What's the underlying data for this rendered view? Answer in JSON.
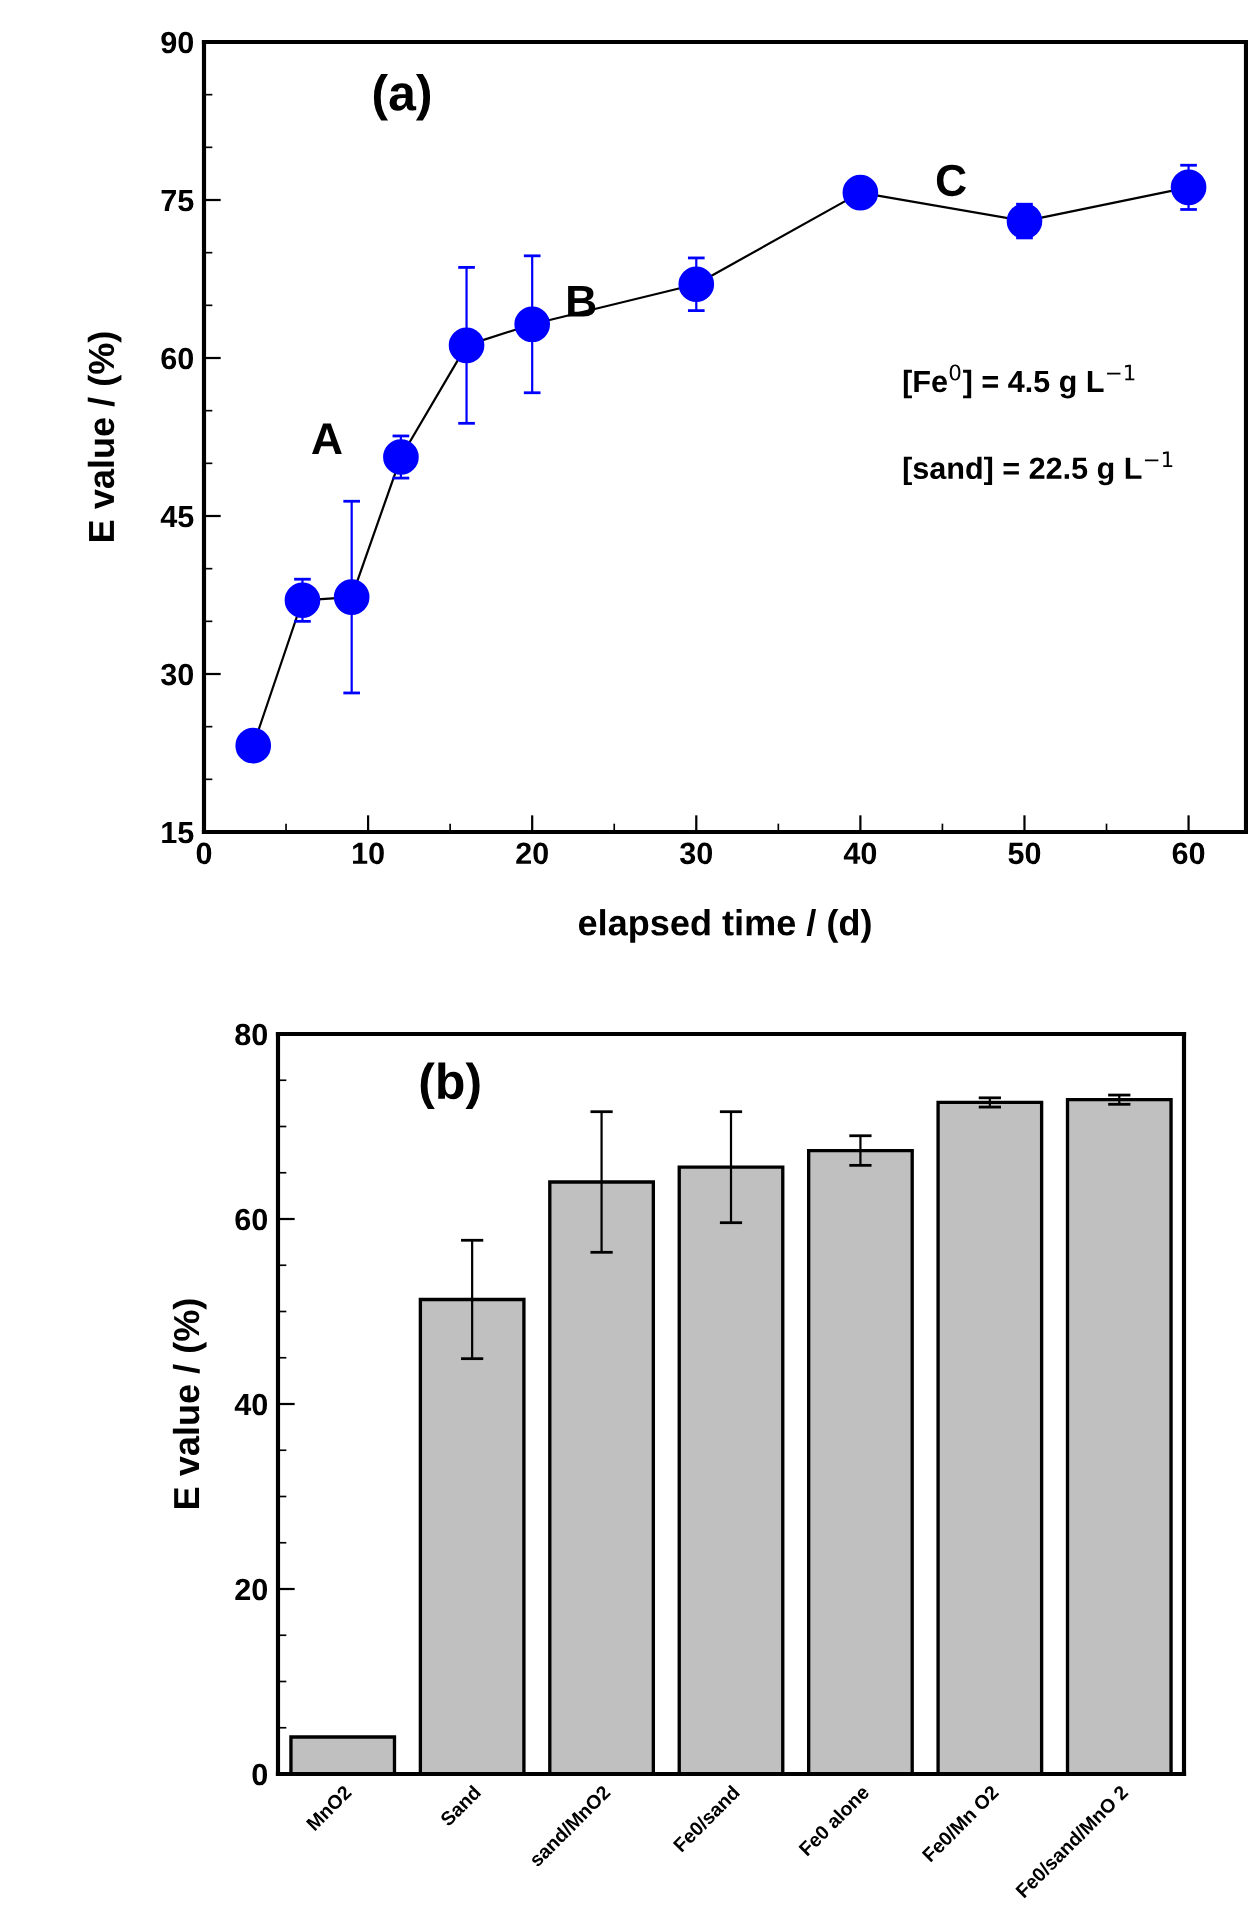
{
  "chart_data": [
    {
      "type": "line",
      "xlabel": "elapsed time / (d)",
      "ylabel": "E value / (%)",
      "xlim": [
        0,
        63.5
      ],
      "ylim": [
        15,
        90
      ],
      "xticks": [
        0,
        10,
        20,
        30,
        40,
        50,
        60
      ],
      "yticks": [
        15,
        30,
        45,
        60,
        75,
        90
      ],
      "marker": "circle",
      "line_style": "solid",
      "grid": false,
      "x": [
        3,
        6,
        9,
        12,
        16,
        20,
        30,
        40,
        50,
        60
      ],
      "series": [
        {
          "color": "#0000ff",
          "values": [
            23.2,
            37.0,
            37.3,
            50.6,
            61.2,
            63.2,
            67.0,
            75.7,
            73.0,
            76.2
          ],
          "errors": [
            1.2,
            2,
            9.1,
            2,
            7.4,
            6.5,
            2.5,
            1.3,
            1.6,
            2.1
          ]
        }
      ],
      "annotations": [
        "(a)",
        "A",
        "B",
        "C",
        "[Fe$^{0}$] = 4.5 g L$^{−1}$",
        "[sand] = 22.5 g L$^{−1}$"
      ]
    },
    {
      "type": "bar",
      "ylabel": "E value / (%)",
      "ylim": [
        0,
        80
      ],
      "yticks": [
        0,
        20,
        40,
        60,
        80
      ],
      "grid": false,
      "categories": [
        "MnO2",
        "Sand",
        "sand/MnO2",
        "Fe0/sand",
        "Fe0 alone",
        "Fe0/Mn O2",
        "Fe0/sand/MnO 2"
      ],
      "values": [
        4.0,
        51.3,
        64.0,
        65.6,
        67.4,
        72.6,
        72.9
      ],
      "errors": [
        null,
        6.4,
        7.6,
        6.0,
        1.6,
        0.5,
        0.5
      ],
      "color": "#c0c0c0",
      "annotations": [
        "(b)"
      ]
    }
  ]
}
